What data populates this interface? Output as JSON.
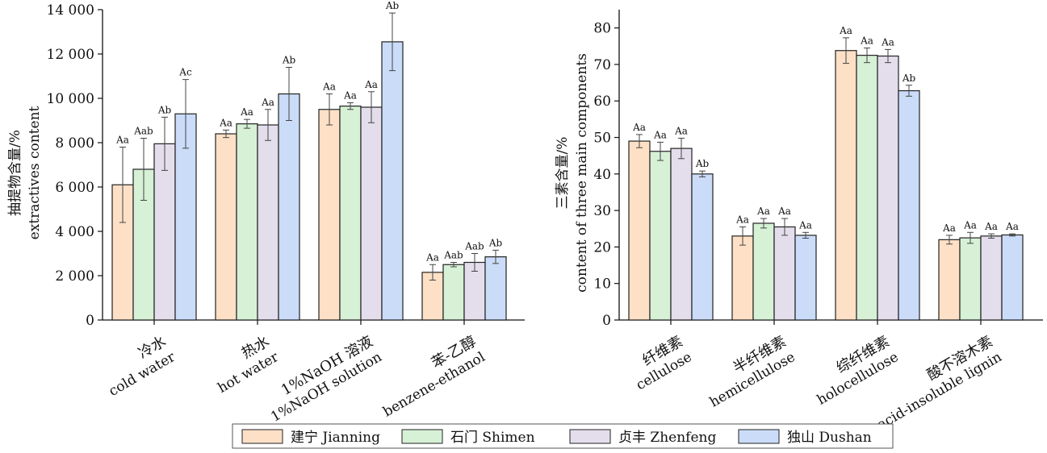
{
  "chart_data": [
    {
      "type": "bar",
      "ylabel_cn": "抽提物含量/%",
      "ylabel_en": "extractives content",
      "ylim": [
        0,
        14000
      ],
      "yticks": [
        0,
        2000,
        4000,
        6000,
        8000,
        10000,
        12000,
        14000
      ],
      "ytick_labels": [
        "0",
        "2 000",
        "4 000",
        "6 000",
        "8 000",
        "10 000",
        "12 000",
        "14 000"
      ],
      "categories": [
        {
          "cn": "冷水",
          "en": "cold water"
        },
        {
          "cn": "热水",
          "en": "hot water"
        },
        {
          "cn": "1%NaOH 溶液",
          "en": "1%NaOH solution"
        },
        {
          "cn": "苯-乙醇",
          "en": "benzene-ethanol"
        }
      ],
      "series": [
        {
          "name": "建宁 Jianning",
          "values": [
            6100,
            8400,
            9500,
            2150
          ],
          "errors": [
            1700,
            170,
            700,
            350
          ],
          "letters": [
            "Aa",
            "Aa",
            "Aa",
            "Aa"
          ]
        },
        {
          "name": "石门 Shimen",
          "values": [
            6800,
            8850,
            9650,
            2500
          ],
          "errors": [
            1400,
            200,
            150,
            100
          ],
          "letters": [
            "Aab",
            "Aa",
            "Aa",
            "Aab"
          ]
        },
        {
          "name": "贞丰 Zhenfeng",
          "values": [
            7950,
            8800,
            9600,
            2600
          ],
          "errors": [
            1200,
            700,
            700,
            400
          ],
          "letters": [
            "Ab",
            "Aa",
            "Aa",
            "Aab"
          ]
        },
        {
          "name": "独山 Dushan",
          "values": [
            9300,
            10200,
            12550,
            2850
          ],
          "errors": [
            1550,
            1200,
            1300,
            300
          ],
          "letters": [
            "Ac",
            "Ab",
            "Ab",
            "Ab"
          ]
        }
      ],
      "grid": false
    },
    {
      "type": "bar",
      "ylabel_cn": "三素含量/%",
      "ylabel_en": "content of three main components",
      "ylim": [
        0,
        85
      ],
      "yticks": [
        0,
        10,
        20,
        30,
        40,
        50,
        60,
        70,
        80
      ],
      "ytick_labels": [
        "0",
        "10",
        "20",
        "30",
        "40",
        "50",
        "60",
        "70",
        "80"
      ],
      "categories": [
        {
          "cn": "纤维素",
          "en": "cellulose"
        },
        {
          "cn": "半纤维素",
          "en": "hemicellulose"
        },
        {
          "cn": "综纤维素",
          "en": "holocellulose"
        },
        {
          "cn": "酸不溶木素",
          "en": "acid-insoluble lignin"
        }
      ],
      "series": [
        {
          "name": "建宁 Jianning",
          "values": [
            49,
            23,
            73.8,
            22
          ],
          "errors": [
            1.8,
            2.5,
            3.5,
            1.2
          ],
          "letters": [
            "Aa",
            "Aa",
            "Aa",
            "Aa"
          ]
        },
        {
          "name": "石门 Shimen",
          "values": [
            46.2,
            26.5,
            72.5,
            22.5
          ],
          "errors": [
            2.5,
            1.3,
            2.0,
            1.5
          ],
          "letters": [
            "Aa",
            "Aa",
            "Aa",
            "Aa"
          ]
        },
        {
          "name": "贞丰 Zhenfeng",
          "values": [
            47,
            25.5,
            72.3,
            23.0
          ],
          "errors": [
            2.8,
            2.3,
            1.8,
            0.6
          ],
          "letters": [
            "Aa",
            "Aa",
            "Aa",
            "Aa"
          ]
        },
        {
          "name": "独山 Dushan",
          "values": [
            40,
            23.2,
            62.8,
            23.3
          ],
          "errors": [
            0.8,
            0.8,
            1.5,
            0.3
          ],
          "letters": [
            "Ab",
            "Aa",
            "Ab",
            "Aa"
          ]
        }
      ],
      "grid": false
    }
  ],
  "legend": {
    "placement": "bottom-center",
    "entries": [
      {
        "label": "建宁 Jianning",
        "color": "#fde0c6"
      },
      {
        "label": "石门 Shimen",
        "color": "#d6f1d6"
      },
      {
        "label": "贞丰 Zhenfeng",
        "color": "#e4deec"
      },
      {
        "label": "独山 Dushan",
        "color": "#cadcf8"
      }
    ]
  },
  "colors": [
    "#fde0c6",
    "#d6f1d6",
    "#e4deec",
    "#cadcf8"
  ]
}
